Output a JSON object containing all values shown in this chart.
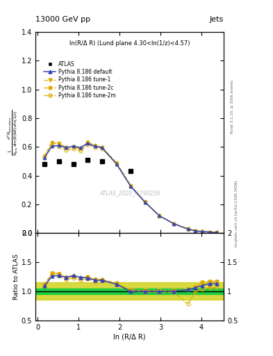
{
  "title_left": "13000 GeV pp",
  "title_right": "Jets",
  "subtitle": "ln(R/Δ R) (Lund plane 4.30<ln(1/z)<4.57)",
  "watermark": "ATLAS_2020_I1790256",
  "right_label_top": "Rivet 3.1.10, ≥ 300k events",
  "right_label_bottom": "mcplots.cern.ch [arXiv:1306.3436]",
  "xlabel": "ln (R/Δ R)",
  "ylabel": "$\\frac{1}{N_{\\rm jets}}\\frac{d^2 N_{\\rm emissions}}{d\\ln (R/\\Delta R)\\, d\\ln (1/z)}$",
  "ylim_main": [
    0.0,
    1.4
  ],
  "ylim_ratio": [
    0.5,
    2.0
  ],
  "atlas_x": [
    0.175,
    0.525,
    0.875,
    1.225,
    1.575,
    2.275
  ],
  "atlas_vals": [
    0.48,
    0.498,
    0.478,
    0.508,
    0.498,
    0.432
  ],
  "default_x": [
    0.175,
    0.35,
    0.525,
    0.7,
    0.875,
    1.05,
    1.225,
    1.4,
    1.575,
    1.925,
    2.275,
    2.625,
    2.975,
    3.325,
    3.675,
    3.85,
    4.025,
    4.2,
    4.375
  ],
  "default_y": [
    0.525,
    0.605,
    0.61,
    0.595,
    0.605,
    0.595,
    0.625,
    0.605,
    0.595,
    0.482,
    0.325,
    0.215,
    0.12,
    0.065,
    0.028,
    0.015,
    0.01,
    0.007,
    0.004
  ],
  "tune1_x": [
    0.175,
    0.35,
    0.525,
    0.7,
    0.875,
    1.05,
    1.225,
    1.4,
    1.575,
    1.925,
    2.275,
    2.625,
    2.975,
    3.325,
    3.675,
    3.85,
    4.025,
    4.2,
    4.375
  ],
  "tune1_y": [
    0.535,
    0.63,
    0.625,
    0.595,
    0.6,
    0.585,
    0.63,
    0.608,
    0.595,
    0.487,
    0.33,
    0.217,
    0.121,
    0.066,
    0.028,
    0.016,
    0.011,
    0.007,
    0.004
  ],
  "tune2c_x": [
    0.175,
    0.35,
    0.525,
    0.7,
    0.875,
    1.05,
    1.225,
    1.4,
    1.575,
    1.925,
    2.275,
    2.625,
    2.975,
    3.325,
    3.675,
    3.85,
    4.025,
    4.2,
    4.375
  ],
  "tune2c_y": [
    0.538,
    0.628,
    0.622,
    0.59,
    0.603,
    0.588,
    0.633,
    0.609,
    0.597,
    0.492,
    0.332,
    0.217,
    0.121,
    0.066,
    0.028,
    0.016,
    0.011,
    0.007,
    0.004
  ],
  "tune2m_x": [
    0.175,
    0.35,
    0.525,
    0.7,
    0.875,
    1.05,
    1.225,
    1.4,
    1.575,
    1.925,
    2.275,
    2.625,
    2.975,
    3.325,
    3.675,
    3.85,
    4.025,
    4.2,
    4.375
  ],
  "tune2m_y": [
    0.528,
    0.612,
    0.603,
    0.578,
    0.588,
    0.572,
    0.618,
    0.597,
    0.588,
    0.482,
    0.327,
    0.212,
    0.119,
    0.064,
    0.025,
    0.015,
    0.01,
    0.006,
    0.003
  ],
  "ratio_default": [
    1.09,
    1.26,
    1.27,
    1.24,
    1.27,
    1.24,
    1.23,
    1.19,
    1.19,
    1.12,
    1.0,
    1.0,
    1.0,
    1.0,
    1.03,
    1.06,
    1.1,
    1.13,
    1.13
  ],
  "ratio_tune1": [
    1.11,
    1.31,
    1.3,
    1.24,
    1.25,
    1.22,
    1.24,
    1.2,
    1.19,
    1.13,
    1.02,
    1.01,
    1.01,
    1.01,
    1.04,
    1.07,
    1.15,
    1.17,
    1.17
  ],
  "ratio_tune2c": [
    1.12,
    1.31,
    1.3,
    1.23,
    1.26,
    1.23,
    1.245,
    1.2,
    1.2,
    1.14,
    1.02,
    1.01,
    1.01,
    1.01,
    1.04,
    1.07,
    1.15,
    1.17,
    1.17
  ],
  "ratio_tune2m": [
    1.1,
    1.28,
    1.26,
    1.2,
    1.23,
    1.19,
    1.215,
    1.17,
    1.18,
    1.12,
    1.01,
    0.985,
    0.99,
    0.985,
    0.78,
    0.99,
    1.03,
    1.06,
    1.06
  ],
  "green_band_lo": 0.95,
  "green_band_hi": 1.05,
  "yellow_band_lo": 0.85,
  "yellow_band_hi": 1.15,
  "color_default": "#3344bb",
  "color_tune1": "#ddaa00",
  "color_tune2c": "#ddaa00",
  "color_tune2m": "#ddaa00",
  "color_atlas": "#000000",
  "color_green": "#00cc44",
  "color_yellow": "#cccc00"
}
